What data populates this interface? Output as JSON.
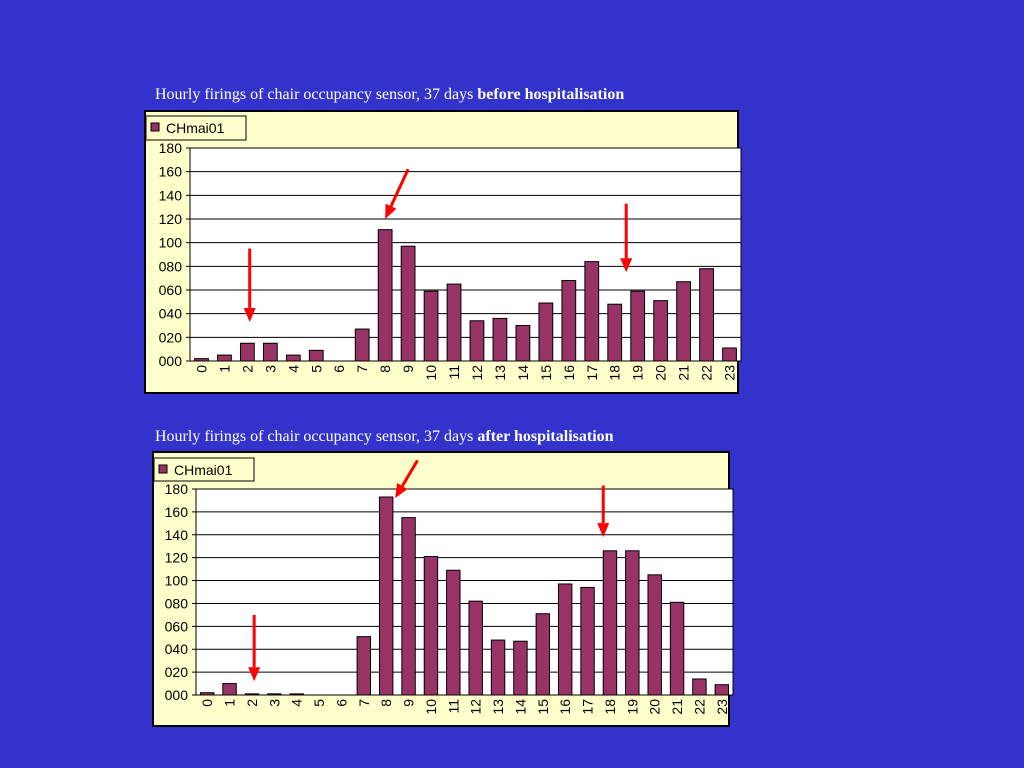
{
  "colors": {
    "background": "#3333cc",
    "plot_area": "#ffffff",
    "frame": "#ffffcc",
    "bar": "#993366",
    "arrow": "#ff0000",
    "caption": "#ffffff"
  },
  "chart_data": [
    {
      "type": "bar",
      "title_prefix": "Hourly firings of chair occupancy sensor, 37 days",
      "title_bold": "before hospitalisation",
      "legend": "CHmai01",
      "legend_position": "top-left",
      "categories": [
        "0",
        "1",
        "2",
        "3",
        "4",
        "5",
        "6",
        "7",
        "8",
        "9",
        "10",
        "11",
        "12",
        "13",
        "14",
        "15",
        "16",
        "17",
        "18",
        "19",
        "20",
        "21",
        "22",
        "23"
      ],
      "series": [
        {
          "name": "CHmai01",
          "values": [
            2,
            5,
            15,
            15,
            5,
            9,
            0,
            27,
            111,
            97,
            59,
            65,
            34,
            36,
            30,
            49,
            68,
            84,
            48,
            59,
            51,
            67,
            78,
            11
          ]
        }
      ],
      "yticks": [
        "000",
        "020",
        "040",
        "060",
        "080",
        "100",
        "120",
        "140",
        "160",
        "180"
      ],
      "ylim": [
        0,
        180
      ],
      "grid": true,
      "annotations": [
        {
          "type": "arrow",
          "from": [
            2.6,
            95
          ],
          "to": [
            2.6,
            33
          ]
        },
        {
          "type": "arrow",
          "from": [
            9.5,
            162
          ],
          "to": [
            8.5,
            120
          ]
        },
        {
          "type": "arrow",
          "from": [
            19.0,
            133
          ],
          "to": [
            19.0,
            75
          ]
        }
      ]
    },
    {
      "type": "bar",
      "title_prefix": "Hourly firings of chair occupancy sensor, 37 days",
      "title_bold": "after hospitalisation",
      "legend": "CHmai01",
      "legend_position": "top-left",
      "categories": [
        "0",
        "1",
        "2",
        "3",
        "4",
        "5",
        "6",
        "7",
        "8",
        "9",
        "10",
        "11",
        "12",
        "13",
        "14",
        "15",
        "16",
        "17",
        "18",
        "19",
        "20",
        "21",
        "22",
        "23"
      ],
      "series": [
        {
          "name": "CHmai01",
          "values": [
            2,
            10,
            1,
            1,
            1,
            0,
            0,
            51,
            173,
            155,
            121,
            109,
            82,
            48,
            47,
            71,
            97,
            94,
            126,
            126,
            105,
            81,
            14,
            9
          ]
        }
      ],
      "yticks": [
        "000",
        "020",
        "040",
        "060",
        "080",
        "100",
        "120",
        "140",
        "160",
        "180"
      ],
      "ylim": [
        0,
        180
      ],
      "grid": true,
      "annotations": [
        {
          "type": "arrow",
          "from": [
            2.6,
            70
          ],
          "to": [
            2.6,
            12
          ]
        },
        {
          "type": "arrow",
          "from": [
            9.9,
            205
          ],
          "to": [
            8.9,
            172
          ]
        },
        {
          "type": "arrow",
          "from": [
            18.2,
            183
          ],
          "to": [
            18.2,
            138
          ]
        }
      ]
    }
  ]
}
